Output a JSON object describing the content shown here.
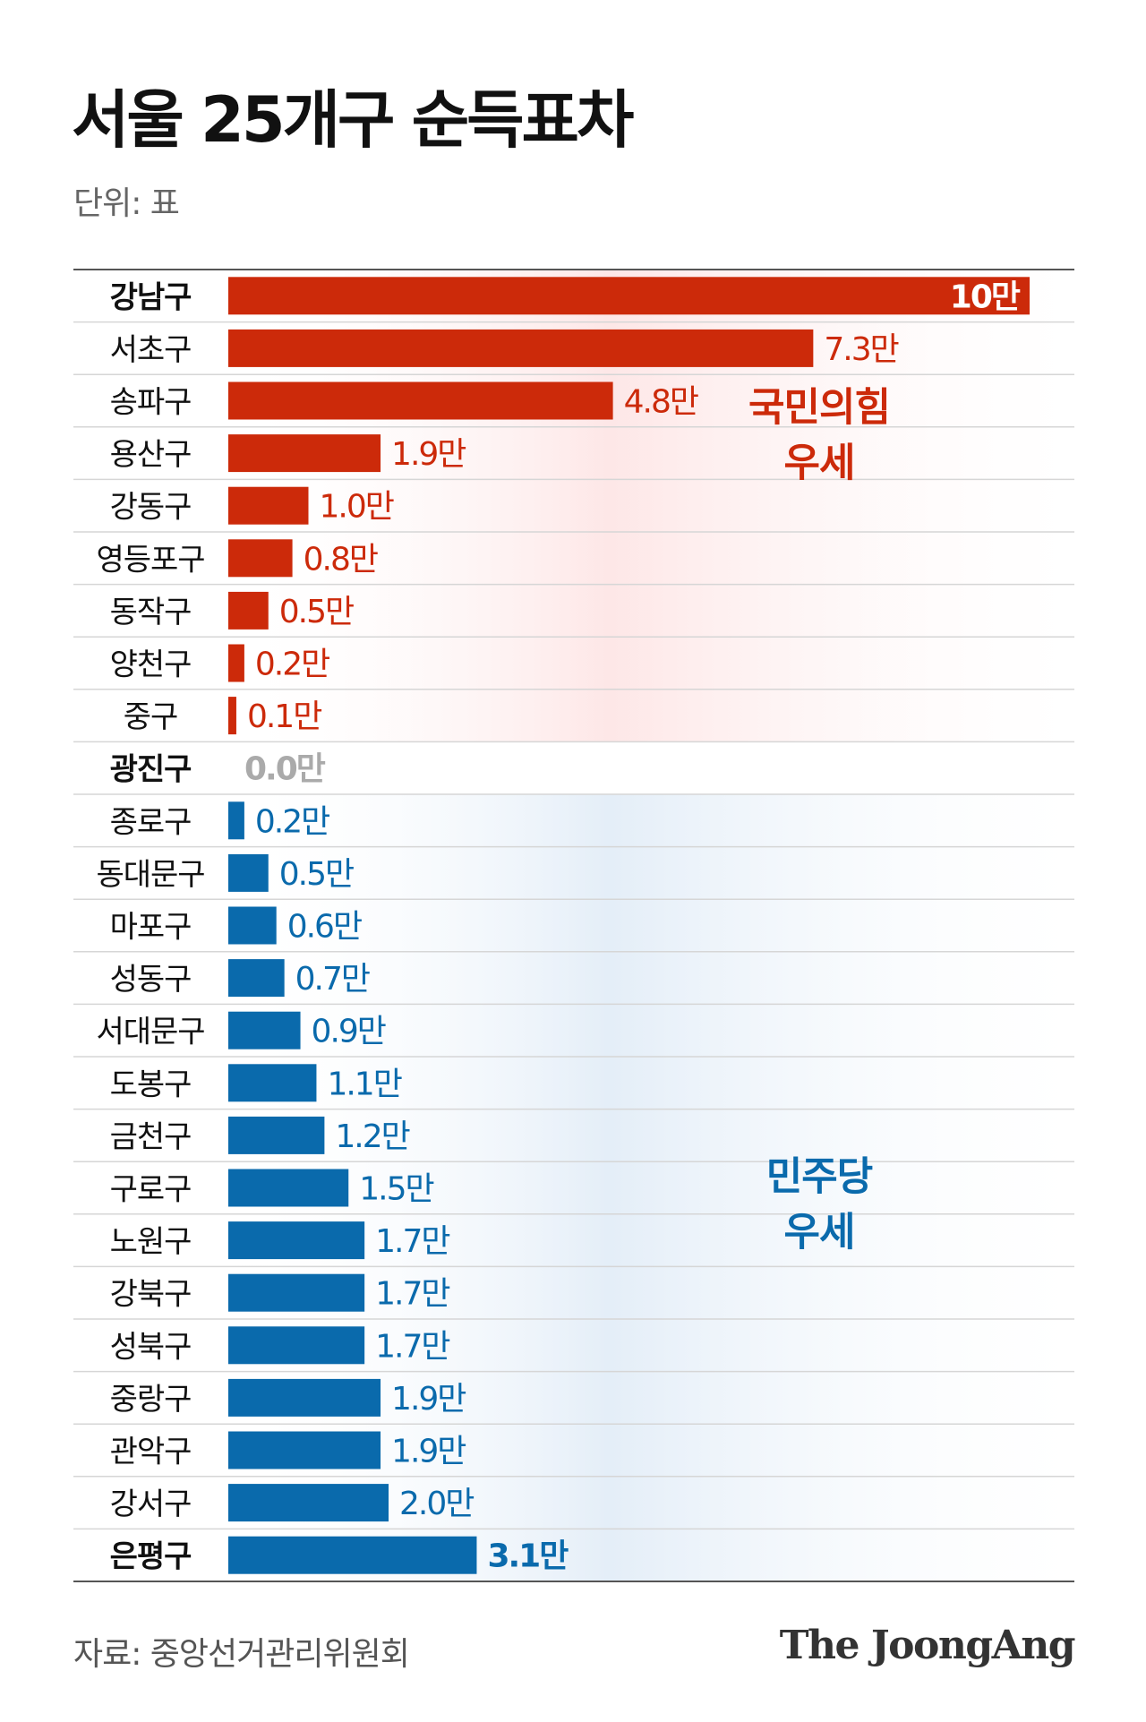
{
  "title": "서울 25개구 순득표차",
  "unit_label": "단위: 표",
  "source": "자료: 중앙선거관리위원회",
  "brand": "The JoongAng",
  "colors": {
    "ppp": "#cc2a0a",
    "dp": "#0a6aac",
    "zero": "#aaaaaa",
    "ppp_bg": "#fde4e4",
    "dp_bg": "#e1ecf7"
  },
  "chart_data": {
    "type": "bar",
    "orientation": "horizontal",
    "title": "서울 25개구 순득표차",
    "unit": "표",
    "annotations": [
      {
        "text": [
          "국민의힘",
          "우세"
        ],
        "party": "ppp"
      },
      {
        "text": [
          "민주당",
          "우세"
        ],
        "party": "dp"
      }
    ],
    "categories": [
      "강남구",
      "서초구",
      "송파구",
      "용산구",
      "강동구",
      "영등포구",
      "동작구",
      "양천구",
      "중구",
      "광진구",
      "종로구",
      "동대문구",
      "마포구",
      "성동구",
      "서대문구",
      "도봉구",
      "금천구",
      "구로구",
      "노원구",
      "강북구",
      "성북구",
      "중랑구",
      "관악구",
      "강서구",
      "은평구"
    ],
    "values": [
      100000,
      73000,
      48000,
      19000,
      10000,
      8000,
      5000,
      2000,
      1000,
      0,
      2000,
      5000,
      6000,
      7000,
      9000,
      11000,
      12000,
      15000,
      17000,
      17000,
      17000,
      19000,
      19000,
      20000,
      31000
    ],
    "labels": [
      "10만",
      "7.3만",
      "4.8만",
      "1.9만",
      "1.0만",
      "0.8만",
      "0.5만",
      "0.2만",
      "0.1만",
      "0.0만",
      "0.2만",
      "0.5만",
      "0.6만",
      "0.7만",
      "0.9만",
      "1.1만",
      "1.2만",
      "1.5만",
      "1.7만",
      "1.7만",
      "1.7만",
      "1.9만",
      "1.9만",
      "2.0만",
      "3.1만"
    ],
    "party": [
      "ppp",
      "ppp",
      "ppp",
      "ppp",
      "ppp",
      "ppp",
      "ppp",
      "ppp",
      "ppp",
      "none",
      "dp",
      "dp",
      "dp",
      "dp",
      "dp",
      "dp",
      "dp",
      "dp",
      "dp",
      "dp",
      "dp",
      "dp",
      "dp",
      "dp",
      "dp"
    ],
    "bold": [
      "강남구",
      "광진구",
      "은평구"
    ]
  }
}
